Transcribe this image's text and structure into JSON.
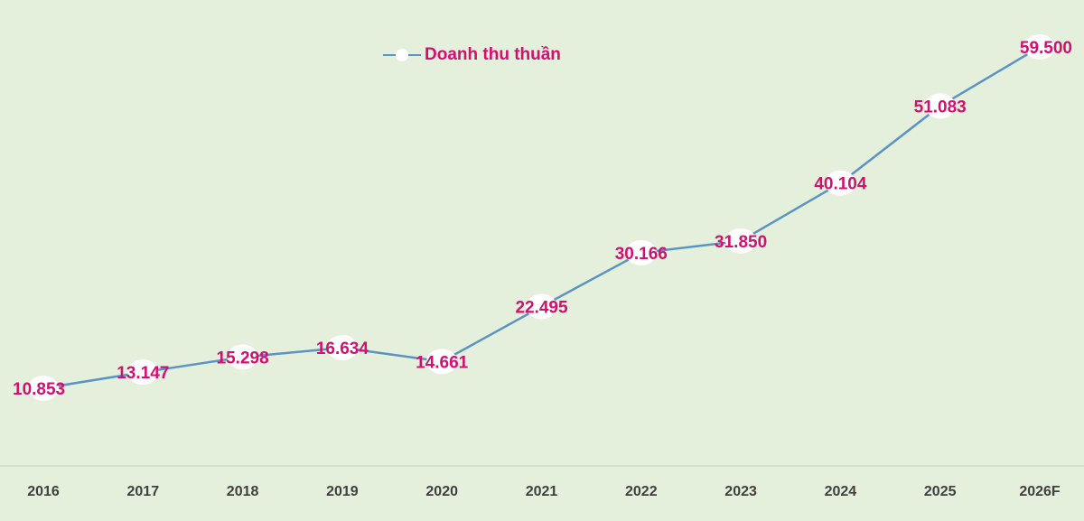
{
  "chart_data": {
    "type": "line",
    "categories": [
      "2016",
      "2017",
      "2018",
      "2019",
      "2020",
      "2021",
      "2022",
      "2023",
      "2024",
      "2025",
      "2026F"
    ],
    "series": [
      {
        "name": "Doanh thu thuần",
        "values": [
          10853,
          13147,
          15298,
          16634,
          14661,
          22495,
          30166,
          31850,
          40104,
          51083,
          59500
        ],
        "labels": [
          "10.853",
          "13.147",
          "15.298",
          "16.634",
          "14.661",
          "22.495",
          "30.166",
          "31.850",
          "40.104",
          "51.083",
          "59.500"
        ]
      }
    ],
    "title": "",
    "xlabel": "",
    "ylabel": "",
    "ylim": [
      0,
      60000
    ],
    "grid": false,
    "legend_position": "top-center",
    "colors": {
      "line": "#5b93c2",
      "marker": "#ffffff",
      "label": "#d0116f",
      "tick": "#3f3f3f",
      "background": "#e4efdc",
      "axis": "#cfd8c8"
    }
  }
}
